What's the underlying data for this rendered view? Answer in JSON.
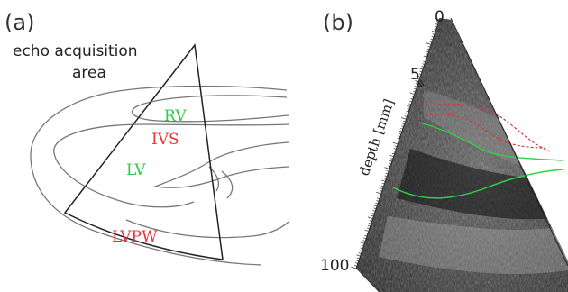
{
  "panel_a": {
    "label": "(a)",
    "title_line1": "echo acquisition",
    "title_line2": "area",
    "regions": [
      {
        "name": "RV",
        "color": "#2ecc40"
      },
      {
        "name": "IVS",
        "color": "#e8333a"
      },
      {
        "name": "LV",
        "color": "#2ecc40"
      },
      {
        "name": "LVPW",
        "color": "#e8333a"
      }
    ]
  },
  "panel_b": {
    "label": "(b)",
    "depth_axis_label": "depth [mm]",
    "depth_top": "0",
    "depth_tick_marker": "5",
    "depth_bottom": "100",
    "colors": {
      "ivs_contour": "#d9363e",
      "lv_contour": "#2fd24a",
      "ultrasound_bg": "#111111"
    }
  }
}
